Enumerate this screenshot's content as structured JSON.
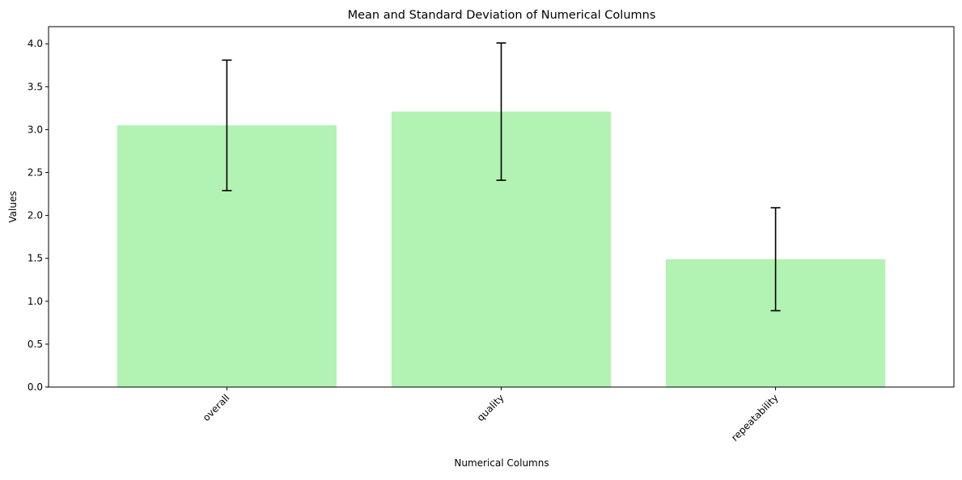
{
  "chart_data": {
    "type": "bar",
    "title": "Mean and Standard Deviation of Numerical Columns",
    "xlabel": "Numerical Columns",
    "ylabel": "Values",
    "categories": [
      "overall",
      "quality",
      "repeatability"
    ],
    "series": [
      {
        "values": [
          3.05,
          3.21,
          1.49
        ],
        "error": [
          0.76,
          0.8,
          0.6
        ]
      }
    ],
    "ylim": [
      0,
      4.2
    ],
    "yticks": [
      "0.0",
      "0.5",
      "1.0",
      "1.5",
      "2.0",
      "2.5",
      "3.0",
      "3.5",
      "4.0"
    ],
    "grid": false,
    "legend": "none",
    "x_tick_rotation": 45,
    "colors": {
      "bar": "#b2f2b3",
      "error_bar": "#000000",
      "axes": "#000000"
    }
  }
}
